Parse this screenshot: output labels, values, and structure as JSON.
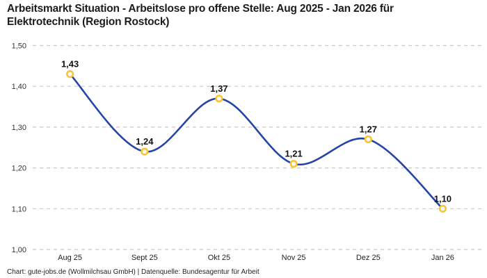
{
  "title": "Arbeitsmarkt Situation - Arbeitslose pro offene Stelle: Aug 2025 - Jan 2026 für Elektrotechnik (Region Rostock)",
  "footer": "Chart: gute-jobs.de (Wollmilchsau GmbH) | Datenquelle: Bundesagentur für Arbeit",
  "chart_data": {
    "type": "line",
    "title": "Arbeitsmarkt Situation - Arbeitslose pro offene Stelle: Aug 2025 - Jan 2026 für Elektrotechnik (Region Rostock)",
    "categories": [
      "Aug 25",
      "Sept 25",
      "Okt 25",
      "Nov 25",
      "Dez 25",
      "Jan 26"
    ],
    "values": [
      1.43,
      1.24,
      1.37,
      1.21,
      1.27,
      1.1
    ],
    "value_labels": [
      "1,43",
      "1,24",
      "1,37",
      "1,21",
      "1,27",
      "1,10"
    ],
    "xlabel": "",
    "ylabel": "",
    "ylim": [
      1.0,
      1.5
    ],
    "y_tick_labels": [
      "1,50",
      "1,40",
      "1,30",
      "1,20",
      "1,10",
      "1,00"
    ],
    "grid": "horizontal-dashed",
    "legend": "none",
    "line_color": "#2444a8",
    "marker_ring_color": "#fcc42c",
    "marker_fill_color": "#ffffff",
    "grid_color": "#c7c7c7",
    "decimal_separator": ","
  }
}
